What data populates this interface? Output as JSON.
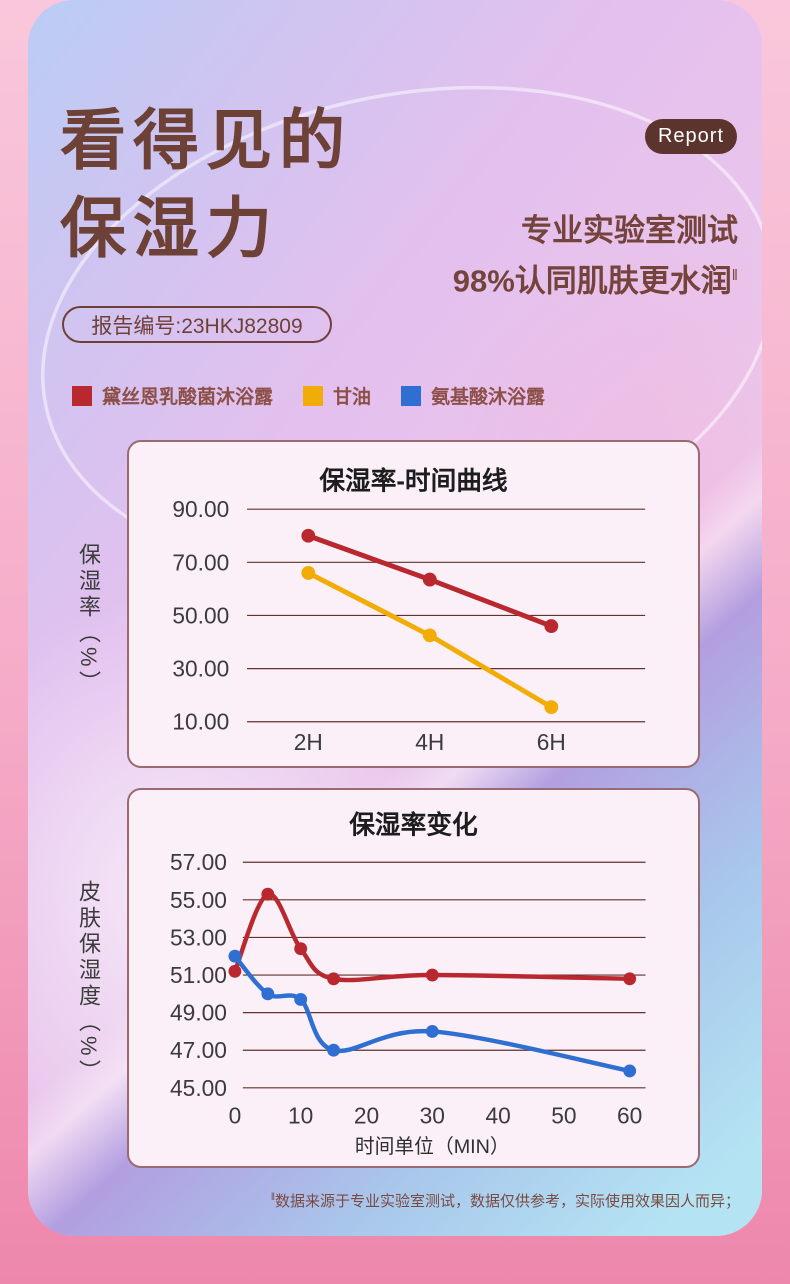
{
  "header": {
    "title_line1": "看得见的",
    "title_line2": "保湿力",
    "badge": "Report",
    "subtitle_line1": "专业实验室测试",
    "subtitle_line2": "98%认同肌肤更水润",
    "subtitle_marker": "‖",
    "report_no": "报告编号:23HKJ82809"
  },
  "legend": [
    {
      "label": "黛丝恩乳酸菌沐浴露",
      "color": "#b9282e"
    },
    {
      "label": "甘油",
      "color": "#f2ac08"
    },
    {
      "label": "氨基酸沐浴露",
      "color": "#2f6fd2"
    }
  ],
  "colors": {
    "title_brown": "#6e4137",
    "badge_bg": "#5b342e",
    "badge_text": "#ffffff",
    "legend_text": "#8d5048",
    "grid_line": "#63322a",
    "axis_text": "#3b3b3b",
    "chart_title_text": "#1d1d1d",
    "chart_bg": "#fbf0f8",
    "chart_border": "#9a6a72",
    "outer_frame_pink": "#ee87ac"
  },
  "chart_data": [
    {
      "type": "line",
      "title": "保湿率-时间曲线",
      "ylabel": "保湿率（%）",
      "xlabel": "",
      "categories": [
        "2H",
        "4H",
        "6H"
      ],
      "yticks": [
        90,
        70,
        50,
        30,
        10
      ],
      "ylim": [
        10,
        90
      ],
      "grid": true,
      "legend_position": "none",
      "series": [
        {
          "name": "黛丝恩乳酸菌沐浴露",
          "color": "#b9282e",
          "values": [
            80,
            63.5,
            46
          ]
        },
        {
          "name": "甘油",
          "color": "#f2ac08",
          "values": [
            66,
            42.5,
            15.5
          ]
        }
      ]
    },
    {
      "type": "line",
      "title": "保湿率变化",
      "ylabel": "皮肤保湿度（%）",
      "xlabel": "时间单位（MIN）",
      "x": [
        0,
        5,
        10,
        15,
        30,
        60
      ],
      "xticks": [
        0,
        10,
        20,
        30,
        40,
        50,
        60
      ],
      "yticks": [
        57,
        55,
        53,
        51,
        49,
        47,
        45
      ],
      "ylim": [
        45,
        57
      ],
      "xlim": [
        0,
        60
      ],
      "grid": true,
      "smooth": true,
      "legend_position": "none",
      "series": [
        {
          "name": "黛丝恩乳酸菌沐浴露",
          "color": "#b9282e",
          "values": [
            51.2,
            55.3,
            52.4,
            50.8,
            51.0,
            50.8
          ]
        },
        {
          "name": "氨基酸沐浴露",
          "color": "#2f6fd2",
          "values": [
            52.0,
            50.0,
            49.7,
            47.0,
            48.0,
            45.9
          ]
        }
      ]
    }
  ],
  "footnote": {
    "marker": "‖",
    "text": "数据来源于专业实验室测试，数据仅供参考，实际使用效果因人而异；"
  }
}
